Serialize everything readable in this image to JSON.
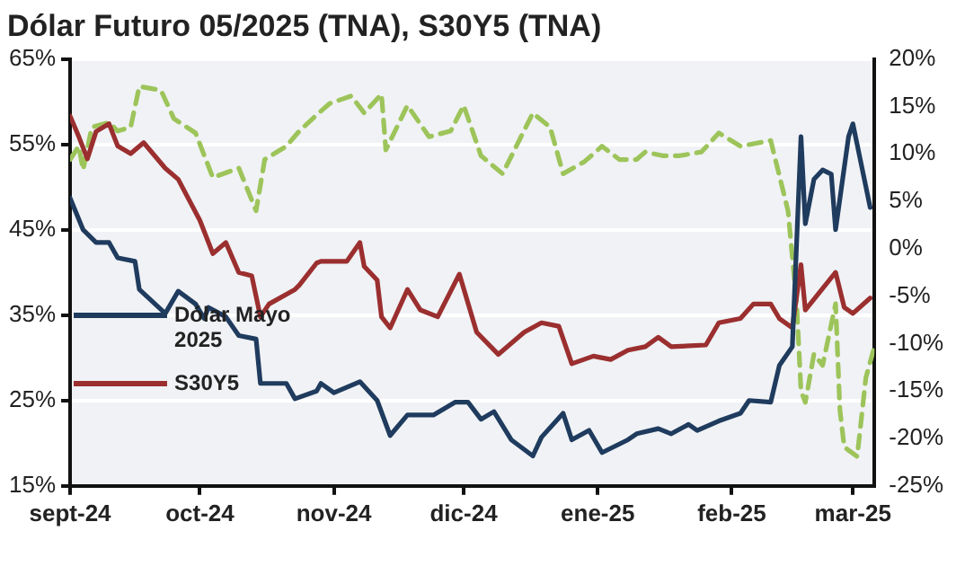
{
  "chart_data": {
    "type": "line",
    "title": "Dólar Futuro 05/2025 (TNA), S30Y5 (TNA)",
    "xlim": [
      "2024-09-01",
      "2025-03-06"
    ],
    "xticks": [
      {
        "value": "2024-09-01",
        "label": "sept-24"
      },
      {
        "value": "2024-10-01",
        "label": "oct-24"
      },
      {
        "value": "2024-11-01",
        "label": "nov-24"
      },
      {
        "value": "2024-12-01",
        "label": "dic-24"
      },
      {
        "value": "2025-01-01",
        "label": "ene-25"
      },
      {
        "value": "2025-02-01",
        "label": "feb-25"
      },
      {
        "value": "2025-03-01",
        "label": "mar-25"
      }
    ],
    "ylim": [
      15,
      65
    ],
    "yticks": [
      {
        "value": 15,
        "label": "15%"
      },
      {
        "value": 25,
        "label": "25%"
      },
      {
        "value": 35,
        "label": "35%"
      },
      {
        "value": 45,
        "label": "45%"
      },
      {
        "value": 55,
        "label": "55%"
      },
      {
        "value": 65,
        "label": "65%"
      }
    ],
    "y2lim": [
      -25,
      20
    ],
    "y2ticks": [
      {
        "value": -25,
        "label": "-25%"
      },
      {
        "value": -20,
        "label": "-20%"
      },
      {
        "value": -15,
        "label": "-15%"
      },
      {
        "value": -10,
        "label": "-10%"
      },
      {
        "value": -5,
        "label": "-5%"
      },
      {
        "value": 0,
        "label": "0%"
      },
      {
        "value": 5,
        "label": "5%"
      },
      {
        "value": 10,
        "label": "10%"
      },
      {
        "value": 15,
        "label": "15%"
      },
      {
        "value": 20,
        "label": "20%"
      }
    ],
    "grid": "y",
    "legend": "left",
    "marker": "none",
    "series": [
      {
        "name": "Dólar Mayo 2025",
        "color": "#1f3b5e",
        "x": [
          "2024-09-01",
          "2024-09-04",
          "2024-09-07",
          "2024-09-10",
          "2024-09-12",
          "2024-09-16",
          "2024-09-17",
          "2024-09-23",
          "2024-09-26",
          "2024-09-30",
          "2024-10-02",
          "2024-10-03",
          "2024-10-07",
          "2024-10-10",
          "2024-10-14",
          "2024-10-15",
          "2024-10-21",
          "2024-10-23",
          "2024-10-28",
          "2024-10-29",
          "2024-11-01",
          "2024-11-07",
          "2024-11-11",
          "2024-11-14",
          "2024-11-18",
          "2024-11-24",
          "2024-11-29",
          "2024-12-02",
          "2024-12-05",
          "2024-12-08",
          "2024-12-12",
          "2024-12-17",
          "2024-12-19",
          "2024-12-24",
          "2024-12-26",
          "2024-12-30",
          "2025-01-02",
          "2025-01-08",
          "2025-01-10",
          "2025-01-15",
          "2025-01-18",
          "2025-01-22",
          "2025-01-24",
          "2025-01-29",
          "2025-02-03",
          "2025-02-05",
          "2025-02-10",
          "2025-02-12",
          "2025-02-15",
          "2025-02-17",
          "2025-02-18",
          "2025-02-20",
          "2025-02-22",
          "2025-02-24",
          "2025-02-25",
          "2025-02-28",
          "2025-03-01",
          "2025-03-05"
        ],
        "values": [
          48.7,
          45,
          43.5,
          43.5,
          41.7,
          41.3,
          38,
          35.2,
          37.8,
          36.3,
          34.6,
          35.9,
          34.8,
          32.6,
          32.2,
          27,
          27,
          25.2,
          26.1,
          27,
          25.9,
          27.2,
          25,
          20.9,
          23.3,
          23.3,
          24.8,
          24.8,
          22.8,
          23.7,
          20.4,
          18.5,
          20.7,
          23.5,
          20.4,
          21.5,
          18.9,
          20.4,
          21.1,
          21.7,
          21.1,
          22.2,
          21.5,
          22.6,
          23.5,
          25,
          24.8,
          29.1,
          31.3,
          55.9,
          45.7,
          50.9,
          52,
          51.5,
          45,
          55.9,
          57.4,
          47.6
        ]
      },
      {
        "name": "S30Y5",
        "color": "#9b2f2f",
        "x": [
          "2024-09-01",
          "2024-09-03",
          "2024-09-05",
          "2024-09-07",
          "2024-09-10",
          "2024-09-12",
          "2024-09-15",
          "2024-09-18",
          "2024-09-23",
          "2024-09-26",
          "2024-10-01",
          "2024-10-04",
          "2024-10-07",
          "2024-10-10",
          "2024-10-13",
          "2024-10-15",
          "2024-10-17",
          "2024-10-23",
          "2024-10-24",
          "2024-10-28",
          "2024-10-29",
          "2024-11-04",
          "2024-11-07",
          "2024-11-08",
          "2024-11-11",
          "2024-11-12",
          "2024-11-14",
          "2024-11-18",
          "2024-11-21",
          "2024-11-25",
          "2024-11-30",
          "2024-12-04",
          "2024-12-09",
          "2024-12-15",
          "2024-12-19",
          "2024-12-23",
          "2024-12-26",
          "2024-12-31",
          "2025-01-04",
          "2025-01-08",
          "2025-01-12",
          "2025-01-15",
          "2025-01-18",
          "2025-01-26",
          "2025-01-29",
          "2025-02-03",
          "2025-02-06",
          "2025-02-10",
          "2025-02-12",
          "2025-02-15",
          "2025-02-17",
          "2025-02-18",
          "2025-02-25",
          "2025-02-27",
          "2025-03-01",
          "2025-03-05"
        ],
        "values": [
          58.3,
          55.9,
          53.3,
          56.5,
          57.4,
          54.8,
          53.9,
          55.2,
          52.2,
          50.9,
          46.1,
          42.2,
          43.5,
          40,
          39.6,
          34.8,
          36.3,
          38,
          38.5,
          41.1,
          41.3,
          41.3,
          43.5,
          40.7,
          39.1,
          34.8,
          33.5,
          38,
          35.6,
          34.8,
          39.8,
          33,
          30.4,
          33,
          34.1,
          33.7,
          29.3,
          30.2,
          29.8,
          30.9,
          31.3,
          32.4,
          31.3,
          31.5,
          34.1,
          34.6,
          36.3,
          36.3,
          34.6,
          33.5,
          40.9,
          35.6,
          40,
          35.9,
          35.2,
          37
        ]
      },
      {
        "color": "#9dc45a",
        "axis": "y2",
        "line_style": "dashed",
        "x": [
          "2024-09-01",
          "2024-09-03",
          "2024-09-04",
          "2024-09-06",
          "2024-09-10",
          "2024-09-12",
          "2024-09-15",
          "2024-09-17",
          "2024-09-22",
          "2024-09-25",
          "2024-09-30",
          "2024-10-04",
          "2024-10-10",
          "2024-10-14",
          "2024-10-16",
          "2024-10-21",
          "2024-10-24",
          "2024-10-28",
          "2024-10-31",
          "2024-11-05",
          "2024-11-08",
          "2024-11-12",
          "2024-11-13",
          "2024-11-18",
          "2024-11-23",
          "2024-11-28",
          "2024-12-01",
          "2024-12-05",
          "2024-12-10",
          "2024-12-17",
          "2024-12-21",
          "2024-12-24",
          "2024-12-29",
          "2025-01-02",
          "2025-01-06",
          "2025-01-10",
          "2025-01-12",
          "2025-01-16",
          "2025-01-20",
          "2025-01-25",
          "2025-01-29",
          "2025-02-03",
          "2025-02-10",
          "2025-02-14",
          "2025-02-16",
          "2025-02-17",
          "2025-02-18",
          "2025-02-20",
          "2025-02-22",
          "2025-02-25",
          "2025-02-26",
          "2025-02-27",
          "2025-03-02",
          "2025-03-04",
          "2025-03-06"
        ],
        "values": [
          9.4,
          10.8,
          8.3,
          12.8,
          13.3,
          12.4,
          12.8,
          17.1,
          16.7,
          13.7,
          12.2,
          7.5,
          8.5,
          4,
          9.4,
          10.8,
          12.4,
          14.1,
          15.3,
          16.1,
          14.3,
          16.3,
          10.4,
          15.1,
          11.8,
          12.4,
          15.1,
          9.8,
          7.9,
          14.3,
          12.8,
          7.9,
          9.2,
          10.8,
          9.4,
          9.4,
          10.2,
          9.8,
          9.8,
          10.2,
          12.2,
          10.8,
          11.4,
          4,
          -5.8,
          -15,
          -16.2,
          -11.1,
          -12.3,
          -5.8,
          -17,
          -20.9,
          -21.9,
          -13.6,
          -10.3
        ]
      }
    ]
  }
}
